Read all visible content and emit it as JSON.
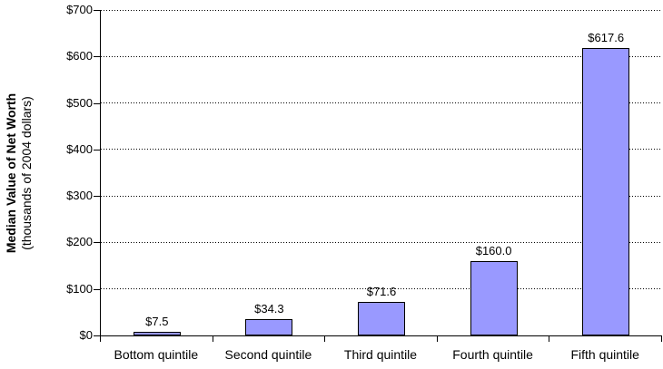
{
  "chart_data": {
    "type": "bar",
    "title": "",
    "categories": [
      "Bottom quintile",
      "Second quintile",
      "Third quintile",
      "Fourth quintile",
      "Fifth quintile"
    ],
    "values": [
      7.5,
      34.3,
      71.6,
      160.0,
      617.6
    ],
    "data_labels": [
      "$7.5",
      "$34.3",
      "$71.6",
      "$160.0",
      "$617.6"
    ],
    "xlabel": "",
    "ylabel": "Median Value of Net Worth",
    "ylabel_subtitle": "(thousands of 2004 dollars)",
    "ylim": [
      0,
      700
    ],
    "ytick_interval": 100,
    "ytick_labels": [
      "$0",
      "$100",
      "$200",
      "$300",
      "$400",
      "$500",
      "$600",
      "$700"
    ],
    "grid": "horizontal-dotted",
    "legend": "none",
    "bar_fill_color": "#9999FF",
    "bar_border_color": "#000000",
    "axis_color": "#000000",
    "text_color": "#000000",
    "background_color": "#FFFFFF"
  }
}
